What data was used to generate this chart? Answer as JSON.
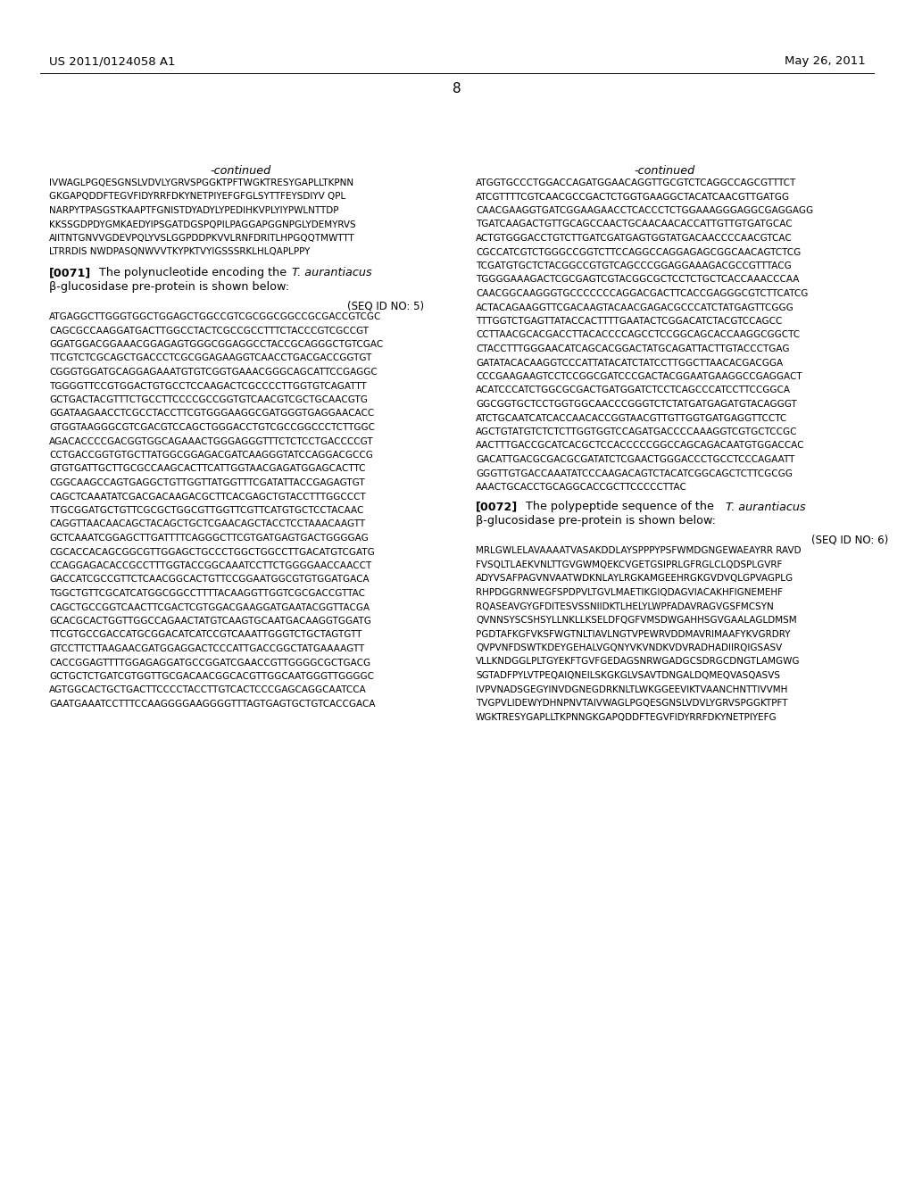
{
  "header_left": "US 2011/0124058 A1",
  "header_right": "May 26, 2011",
  "page_number": "8",
  "background_color": "#ffffff",
  "text_color": "#000000",
  "left_continued": "-continued",
  "right_continued": "-continued",
  "left_protein_lines": [
    "IVWAGLPGQESGNSLVDVLYGRVSPGGKTPFTWGKTRESYGAPLLTKPNN",
    "GKGAPQDDFTEGVFIDYRRFDKYNETPIYEFGFGLSYTTFEYSDIYV QPL",
    "NARPYTPASGSTKAAPTFGNISTDYADYLYPEDIHKVPLYIYPWLNTTDP",
    "KKSSGDPDYGMKAEDYIPSGATDGSPQPILPAGGAPGGNPGLYDEMYRVS",
    "AIITNTGNVVGDEVPQLYVSLGGPDDPKVVLRNFDRITLHPGQQTMWTTT",
    "LTRRDIS NWDPASQNWVVTKYPKTVYIGSSSRKLHLQAPLPPY"
  ],
  "para_0071_bold": "[0071]",
  "para_0071_text": "   The polynucleotide encoding the ",
  "para_0071_italic": "T. aurantiacus",
  "para_0071_line2": "β-glucosidase pre-protein is shown below:",
  "seq_id_5": "(SEQ ID NO: 5)",
  "left_dna_lines": [
    "ATGAGGCTTGGGTGGCTGGAGCTGGCCGTCGCGGCGGCCGCGACCGTCGC",
    "CAGCGCCAAGGATGACTTGGCCTACTCGCCGCCTTTCTACCCGTCGCCGT",
    "GGATGGACGGAAACGGAGAGTGGGCGGAGGCCTACCGCAGGGCTGTCGAC",
    "TTCGTCTCGCAGCTGACCCTCGCGGAGAAGGTCAACCTGACGACCGGTGT",
    "CGGGTGGATGCAGGAGAAATGTGTCGGTGAAACGGGCAGCATTCCGAGGC",
    "TGGGGTTCCGTGGACTGTGCCTCCAAGACTCGCCCCTTGGTGTCAGATTT",
    "GCTGACTACGTTTCTGCCTTCCCCGCCGGTGTCAACGTCGCTGCAACGTG",
    "GGATAAGAACCTCGCCTACCTTCGTGGGAAGGCGATGGGTGAGGAACACC",
    "GTGGTAAGGGCGTCGACGTCCAGCTGGGACCTGTCGCCGGCCCTCTTGGC",
    "AGACACCCCGACGGTGGCAGAAACTGGGAGGGTTTCTCTCCTGACCCCGT",
    "CCTGACCGGTGTGCTTATGGCGGAGACGATCAAGGGTATCCAGGACGCCG",
    "GTGTGATTGCTTGCGCCAAGCACTTCATTGGTAACGAGATGGAGCACTTC",
    "CGGCAAGCCAGTGAGGCTGTTGGTTATGGTTTCGATATTACCGAGAGTGT",
    "CAGCTCAAATATCGACGACAAGACGCTTCACGAGCTGTACCTTTGGCCCT",
    "TTGCGGATGCTGTTCGCGCTGGCGTTGGTTCGTTCATGTGCTCCTACAAC",
    "CAGGTTAACAACAGCTACAGCTGCTCGAACAGCTACCTCCTAAACAAGTT",
    "GCTCAAATCGGAGCTTGATTTTCAGGGCTTCGTGATGAGTGACTGGGGAG",
    "CGCACCACAGCGGCGTTGGAGCTGCCCTGGCTGGCCTTGACATGTCGATG",
    "CCAGGAGACACCGCCTTTGGTACCGGCAAATCCTTCTGGGGAACCAACCT",
    "GACCATCGCCGTTCTCAACGGCACTGTTCCGGAATGGCGTGTGGATGACA",
    "TGGCTGTTCGCATCATGGCGGCCTTTTACAAGGTTGGTCGCGACCGTTAC",
    "CAGCTGCCGGTCAACTTCGACTCGTGGACGAAGGATGAATACGGTTACGA",
    "GCACGCACTGGTTGGCCAGAACTATGTCAAGTGCAATGACAAGGTGGATG",
    "TTCGTGCCGACCATGCGGACATCATCCGTCAAATTGGGTCTGCTAGTGTT",
    "GTCCTTCTTAAGAACGATGGAGGACTCCCATTGACCGGCTATGAAAAGTT",
    "CACCGGAGTTTTGGAGAGGATGCCGGATCGAACCGTTGGGGCGCTGACG",
    "GCTGCTCTGATCGTGGTTGCGACAACGGCACGTTGGCAATGGGTTGGGGC",
    "AGTGGCACTGCTGACTTCCCCTACCTTGTCACTCCCGAGCAGGCAATCCA",
    "GAATGAAATCCTTTCCAAGGGGAAGGGGTTTAGTGAGTGCTGTCACCGACA"
  ],
  "right_dna_lines": [
    "ATGGTGCCCTGGACCAGATGGAACAGGTTGCGTCTCAGGCCAGCGTTTCT",
    "ATCGTTTTCGTCAACGCCGACTCTGGTGAAGGCTACATCAACGTTGATGG",
    "CAACGAAGGTGATCGGAAGAACCTCACCCTCTGGAAAGGGAGGCGAGGAGG",
    "TGATCAAGACTGTTGCAGCCAACTGCAACAACACCATTGTTGTGATGCAC",
    "ACTGTGGGACCTGTCTTGATCGATGAGTGGTATGACAACCCCAACGTCAC",
    "CGCCATCGTCTGGGCCGGTCTTCCAGGCCAGGAGAGCGGCAACAGTCTCG",
    "TCGATGTGCTCTACGGCCGTGTCAGCCCGGAGGAAAGACGCCGTTTACG",
    "TGGGGAAAGACTCGCGAGTCGTACGGCGCTCCTCTGCTCACCAAACCCAA",
    "CAACGGCAAGGGTGCCCCCCCAGGACGACTTCACCGAGGGCGTCTTCATCG",
    "ACTACAGAAGGTTCGACAAGTACAACGAGACGCCCATCTATGAGTTCGGG",
    "TTTGGTCTGAGTTATACCACTTTTGAATACTCGGACATCTACGTCCAGCC",
    "CCTTAACGCACGACCTTACACCCCAGCCTCCGGCAGCACCAAGGCGGCTC",
    "CTACCTTTGGGAACATCAGCACGGACTATGCAGATTACTTGTACCCTGAG",
    "GATATACACAAGGTCCCATTATACATCTATCCTTGGCTTAACACGACGGA",
    "CCCGAAGAAGTCCTCCGGCGATCCCGACTACGGAATGAAGGCCGAGGACT",
    "ACATCCCATCTGGCGCGACTGATGGATCTCCTCAGCCCATCCTTCCGGCA",
    "GGCGGTGCTCCTGGTGGCAACCCGGGTCTCTATGATGAGATGTACAGGGT",
    "ATCTGCAATCATCACCAACACCGGTAACGTTGTTGGTGATGAGGTTCCTC",
    "AGCTGTATGTCTCTCTTGGTGGTCCAGATGACCCCAAAGGTCGTGCTCCGC",
    "AACTTTGACCGCATCACGCTCCACCCCCGGCCAGCAGACAATGTGGACCAC",
    "GACATTGACGCGACGCGATATCTCGAACTGGGACCCTGCCTCCCAGAATT",
    "GGGTTGTGACCAAATATCCCAAGACAGTCTACATCGGCAGCTCTTCGCGG",
    "AAACTGCACCTGCAGGCACCGCTTCCCCCTTAC"
  ],
  "para_0072_bold": "[0072]",
  "para_0072_text": "   The polypeptide sequence of the ",
  "para_0072_italic": "T. aurantiacus",
  "para_0072_line2": "β-glucosidase pre-protein is shown below:",
  "seq_id_6": "(SEQ ID NO: 6)",
  "right_protein_lines": [
    "MRLGWLELAVAAAATVASAKDDLAYSPPPYPSFWMDGNGEWAEAYRR RAVD",
    "FVSQLTLAEKVNLTTGVGWMQEKCVGETGSIPRLGFRGLCLQDSPLGVRF",
    "ADYVSAFPAGVNVAATWDKNLAYLRGKAMGEEHRGKGVDVQLGPVAGPLG",
    "RHPDGGRNWEGFSPDPVLTGVLMAETIKGIQDAGVIACAKHFIGNEMEHF",
    "RQASEAVGYGFDITESVSSNIIDKTLHELYLWPFADAVRAGVGSFMCSYN",
    "QVNNSYSCSHSYLLNKLLKSELDFQGFVMSDWGAHHSGVGAALAGLDMSM",
    "PGDTAFKGFVKSFWGTNLTIAVLNGTVPEWRVDDMAVRIMAAFYKVGRDRY",
    "QVPVNFDSWTKDEYGEHALVGQNYVKVNDKVDVRADHADIIRQIGSASV",
    "VLLKNDGGLPLTGYEKFTGVFGEDAGSNRWGADGCSDRGCDNGTLAMGWG",
    "SGTADFPYLVTPEQAIQNEILSKGKGLVSAVTDNGALDQMEQVASQASVS",
    "IVPVNADSGEGYINVDGNEGDRKNLTLWKGGEEVIKTVAANCHNTTIVVMH",
    "TVGPVLIDEWYDHNPNVTAIVWAGLPGQESGNSLVDVLYGRVSPGGKTPFT",
    "WGKTRESYGAPLLTKPNNGKGAPQDDFTEGVFIDYRRFDKYNETPIYEFG"
  ]
}
